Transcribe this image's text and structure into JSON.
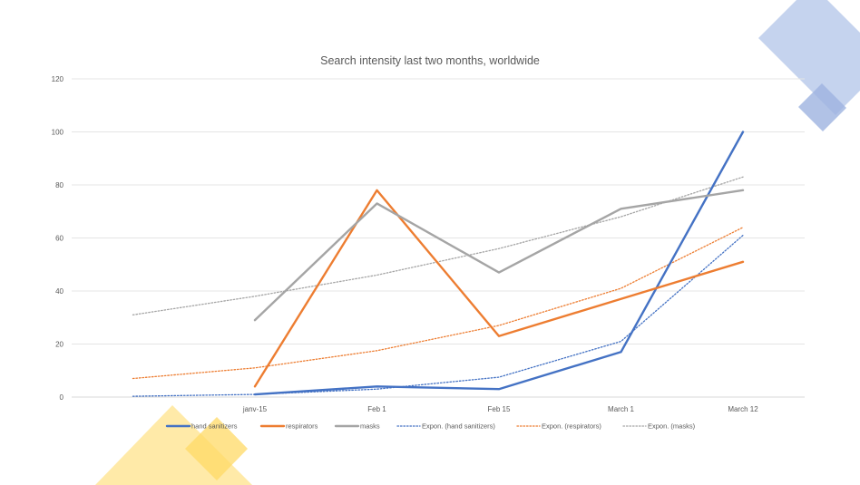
{
  "chart_data": {
    "type": "line",
    "title": "Search intensity last two months, worldwide",
    "xlabel": "",
    "ylabel": "",
    "categories": [
      "janv-15",
      "Feb 1",
      "Feb 15",
      "March 1",
      "March 12"
    ],
    "ylim": [
      0,
      120
    ],
    "yticks": [
      0,
      20,
      40,
      60,
      80,
      100,
      120
    ],
    "grid": true,
    "legend_position": "bottom",
    "series": [
      {
        "name": "hand sanitizers",
        "values": [
          1,
          4,
          3,
          17,
          100
        ],
        "color": "#4472c4",
        "style": "solid"
      },
      {
        "name": "respirators",
        "values": [
          4,
          78,
          23,
          37,
          51
        ],
        "color": "#ed7d31",
        "style": "solid"
      },
      {
        "name": "masks",
        "values": [
          29,
          73,
          47,
          71,
          78
        ],
        "color": "#a5a5a5",
        "style": "solid"
      }
    ],
    "trendlines": [
      {
        "name": "Expon. (hand sanitizers)",
        "x": [
          -1,
          0,
          1,
          2,
          3,
          4
        ],
        "values": [
          0.3,
          1,
          3,
          7.5,
          21,
          61
        ],
        "color": "#4472c4",
        "style": "dotted"
      },
      {
        "name": "Expon. (respirators)",
        "x": [
          -1,
          0,
          1,
          2,
          3,
          4
        ],
        "values": [
          7,
          11,
          17.5,
          27,
          41,
          64
        ],
        "color": "#ed7d31",
        "style": "dotted"
      },
      {
        "name": "Expon. (masks)",
        "x": [
          -1,
          0,
          1,
          2,
          3,
          4
        ],
        "values": [
          31,
          38,
          46,
          56,
          68,
          83
        ],
        "color": "#a5a5a5",
        "style": "dotted"
      }
    ]
  },
  "decor": {
    "blue": "#b4c7e7",
    "blue_dark": "#8faadc",
    "yellow": "#ffe699",
    "yellow_dark": "#ffd966"
  }
}
